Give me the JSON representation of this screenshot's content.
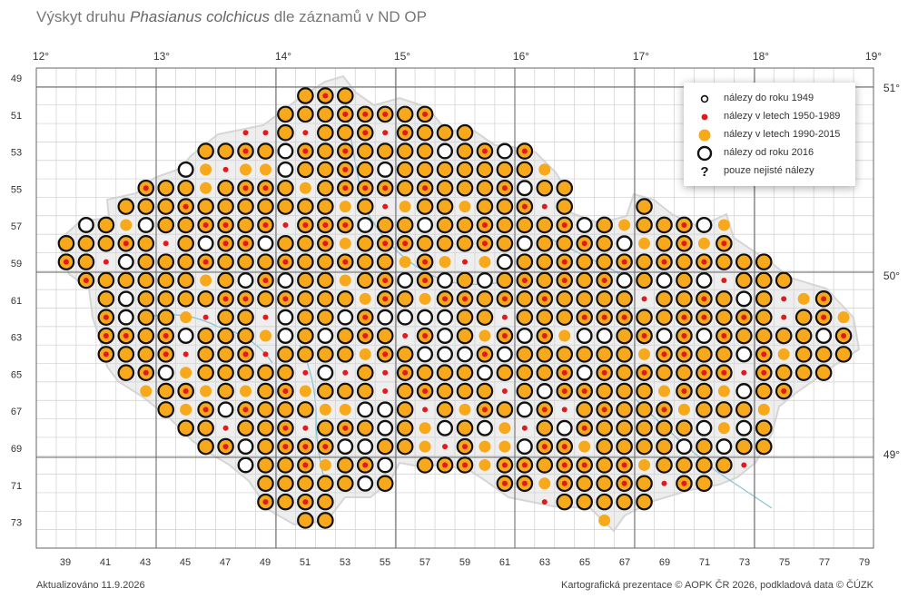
{
  "title": {
    "prefix": "Výskyt druhu ",
    "species": "Phasianus colchicus",
    "suffix": " dle záznamů v ND OP"
  },
  "map": {
    "lon_labels": [
      "12°",
      "13°",
      "14°",
      "15°",
      "16°",
      "17°",
      "18°",
      "19°"
    ],
    "lat_labels": [
      "51°",
      "50°",
      "49°"
    ],
    "row_labels": [
      "49",
      "51",
      "53",
      "55",
      "57",
      "59",
      "61",
      "63",
      "65",
      "67",
      "69",
      "71",
      "73"
    ],
    "col_labels": [
      "39",
      "41",
      "43",
      "45",
      "47",
      "49",
      "51",
      "53",
      "55",
      "57",
      "59",
      "61",
      "63",
      "65",
      "67",
      "69",
      "71",
      "73",
      "75",
      "77",
      "79"
    ]
  },
  "legend": {
    "items": [
      {
        "symbol": "small-ring",
        "label": "nálezy do roku 1949"
      },
      {
        "symbol": "red-dot",
        "label": "nálezy v letech 1950-1989"
      },
      {
        "symbol": "orange-dot",
        "label": "nálezy v letech 1990-2015"
      },
      {
        "symbol": "big-ring",
        "label": "nálezy od roku 2016"
      },
      {
        "symbol": "question",
        "label": "pouze nejisté nálezy"
      }
    ]
  },
  "colors": {
    "orange": "#f7a81b",
    "red": "#e31a1c",
    "ring": "#111111",
    "land": "#eeeeee",
    "river": "#7fbfd0",
    "grid": "#cfcfcf"
  },
  "footer": {
    "left": "Aktualizováno 11.9.2026",
    "right": "Kartografická prezentace © AOPK ČR 2026, podkladová data © ČÚZK"
  },
  "occurrences": {
    "legend_codes": "B = big ring + orange + small ring; F = big ring + orange + red; O = orange only; R = red only; K = big ring only; W = big ring + small ring; D = big ring + red",
    "rows": [
      {
        "row": 0,
        "cells": "..........................K.O..........................................."
      },
      {
        "row": 1,
        "cells": "..........................O.O..........................................."
      },
      {
        "row": 2,
        "cells": "......................R.K.D.K.B................................................"
      },
      {
        "row": 3,
        "cells": "................K.B.B.B.B.B.B.B.B.B.K............................................"
      },
      {
        "row": 4,
        "cells": "................B.B.B.B.B.B.D.B.B.B.B.O.W.B......B................................"
      },
      {
        "row": 5,
        "cells": "..............W.B.F.F.F.F.B.B.W.D.B.W.B.B.B.W.B.B.B.W.W........................."
      },
      {
        "row": 6,
        "cells": "..........K.W.B.B.B.B.B.B.B.B.B.B.K.B.B.F.B.B.B.B.B.B.B.K.O.O......................."
      },
      {
        "row": 7,
        "cells": "......W.B.B.B.F.B.F.B.F.F.B.F.F.B.F.F.F.F.F.B.B.K.D.W.O.K.W.W.B.O..................."
      }
    ]
  }
}
